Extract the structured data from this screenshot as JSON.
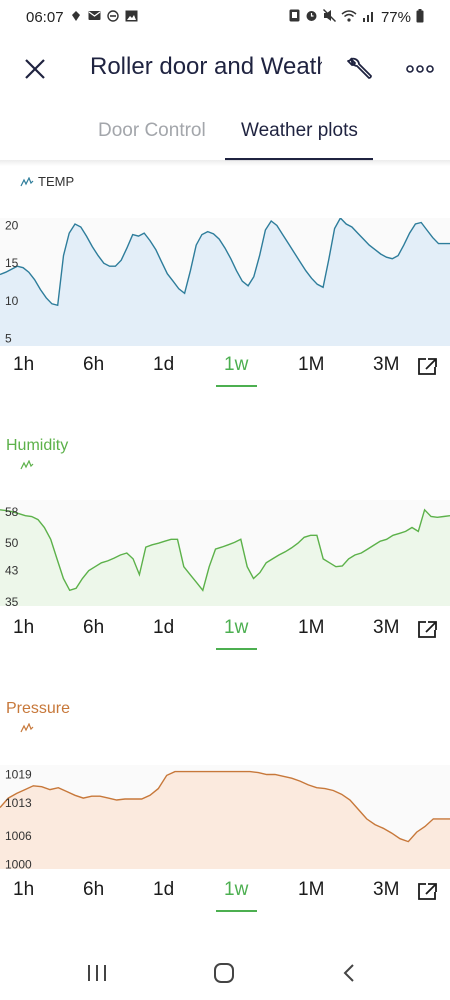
{
  "status_bar": {
    "time": "06:07",
    "battery": "77%",
    "left_icons": [
      "notification-icon",
      "mail-icon",
      "do-not-disturb-icon",
      "image-icon"
    ],
    "right_icons": [
      "nfc-icon",
      "alarm-icon",
      "mute-icon",
      "wifi-icon",
      "signal-icon",
      "battery-icon"
    ]
  },
  "app_bar": {
    "title": "Roller door and Weath",
    "close_icon": "close-icon",
    "settings_icon": "wrench-icon",
    "more_icon": "more-horizontal-icon"
  },
  "tabs": [
    {
      "label": "Door Control",
      "active": false
    },
    {
      "label": "Weather plots",
      "active": true
    }
  ],
  "ranges": [
    "1h",
    "6h",
    "1d",
    "1w",
    "1M",
    "3M"
  ],
  "active_range": "1w",
  "colors": {
    "accent": "#4caf50",
    "temp_line": "#2e7d9b",
    "temp_fill": "#e3eef8",
    "humidity_line": "#5cb14a",
    "humidity_fill": "#edf7ea",
    "pressure_line": "#c7783a",
    "pressure_fill": "#fbeade",
    "title_dark": "#1f2340"
  },
  "sections": {
    "temp": {
      "title": "",
      "legend": "TEMP"
    },
    "humidity": {
      "title": "Humidity",
      "legend": ""
    },
    "pressure": {
      "title": "Pressure",
      "legend": ""
    }
  },
  "chart_data": [
    {
      "type": "area",
      "legend": "TEMP",
      "ylim": [
        4,
        21
      ],
      "yticks": [
        "20",
        "15",
        "10",
        "5"
      ],
      "yticks_values": [
        20,
        15,
        10,
        5
      ],
      "x_range": "1w",
      "y": [
        13.5,
        13.8,
        14.2,
        14.6,
        14.4,
        13.8,
        12.8,
        11.5,
        10.4,
        9.6,
        9.4,
        16,
        19,
        20.2,
        19.8,
        18.6,
        17.2,
        16,
        15,
        14.6,
        14.6,
        15.4,
        17,
        18.8,
        18.6,
        19,
        18,
        16.8,
        15.2,
        13.6,
        12.6,
        11.6,
        11,
        14,
        17.4,
        18.8,
        19.2,
        18.9,
        18.2,
        17,
        15.6,
        14,
        12.6,
        12,
        13.2,
        16,
        19.4,
        20.6,
        20,
        18.8,
        17.6,
        16.4,
        15.2,
        14,
        13,
        12.2,
        11.8,
        15.5,
        19.6,
        21,
        20.2,
        19.8,
        19,
        18.2,
        17.4,
        16.8,
        16.2,
        15.8,
        15.6,
        16,
        17.4,
        19,
        20.2,
        20.4,
        19.4,
        18.4,
        17.6,
        17.6,
        17.6
      ]
    },
    {
      "type": "area",
      "legend": "",
      "title": "Humidity",
      "ylim": [
        34,
        61
      ],
      "yticks": [
        "58",
        "50",
        "43",
        "35"
      ],
      "yticks_values": [
        58,
        50,
        43,
        35
      ],
      "x_range": "1w",
      "y": [
        58.5,
        58.3,
        58,
        57.5,
        57,
        56.8,
        56,
        54,
        51,
        46,
        41,
        38,
        38.5,
        41,
        43,
        44,
        45,
        45.5,
        46.2,
        47,
        47.5,
        46,
        42,
        49,
        49.6,
        50,
        50.5,
        51,
        51,
        44,
        42,
        40,
        38,
        44,
        48.5,
        49,
        49.6,
        50.2,
        51,
        44,
        41,
        42.5,
        45,
        46,
        47,
        47.8,
        48.8,
        50,
        51.5,
        52,
        52,
        46,
        45,
        44,
        44.2,
        46,
        47,
        47.5,
        48.5,
        49.5,
        50.5,
        51,
        52,
        52.5,
        53,
        54,
        53,
        58.5,
        56.8,
        56.6,
        56.8,
        57
      ]
    },
    {
      "type": "area",
      "legend": "",
      "title": "Pressure",
      "ylim": [
        999,
        1021
      ],
      "yticks": [
        "1019",
        "1013",
        "1006",
        "1000"
      ],
      "yticks_values": [
        1019,
        1013,
        1006,
        1000
      ],
      "x_range": "1w",
      "y": [
        1012,
        1014,
        1015,
        1015.8,
        1016.6,
        1016.4,
        1015.8,
        1016.2,
        1015.4,
        1014.6,
        1014,
        1014.4,
        1014.4,
        1014,
        1013.6,
        1013.8,
        1013.8,
        1013.8,
        1014.6,
        1016,
        1018.8,
        1019.6,
        1019.6,
        1019.6,
        1019.6,
        1019.6,
        1019.6,
        1019.6,
        1019.6,
        1019.6,
        1019.6,
        1019.4,
        1019,
        1019,
        1018.6,
        1018.2,
        1017.6,
        1016.8,
        1016.2,
        1016,
        1015.6,
        1014.8,
        1013.6,
        1011.6,
        1009.6,
        1008.4,
        1007.6,
        1006.6,
        1005.4,
        1004.8,
        1006.8,
        1008,
        1009.6,
        1009.6,
        1009.6
      ]
    }
  ]
}
